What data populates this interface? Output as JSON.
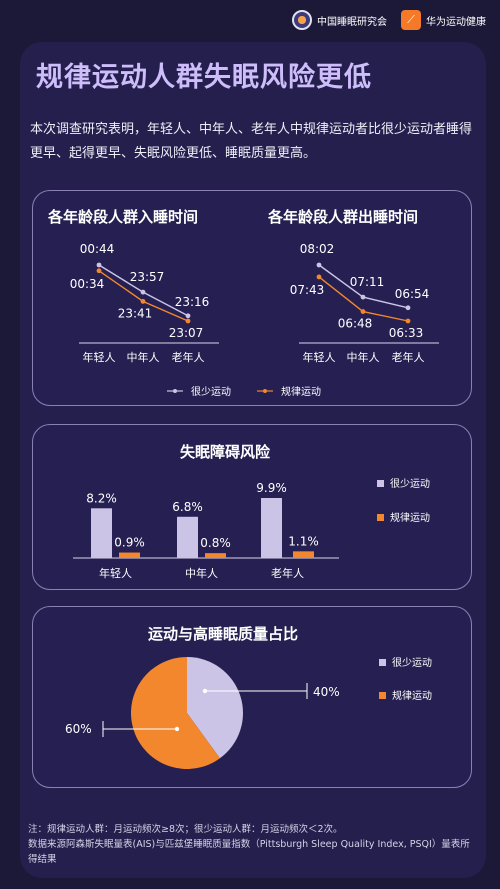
{
  "header": {
    "org1": "中国睡眠研究会",
    "org2": "华为运动健康"
  },
  "title": "规律运动人群失眠风险更低",
  "intro": "本次调查研究表明，年轻人、中年人、老年人中规律运动者比很少运动者睡得更早、起得更早、失眠风险更低、睡眠质量更高。",
  "colors": {
    "series_a": "#cbc4e6",
    "series_b": "#f2872e",
    "title": "#cdbdfb"
  },
  "chart_data": [
    {
      "type": "line",
      "title": "各年龄段人群入睡时间",
      "categories": [
        "年轻人",
        "中年人",
        "老年人"
      ],
      "series": [
        {
          "name": "很少运动",
          "values": [
            "00:44",
            "23:57",
            "23:16"
          ],
          "minutes": [
            1484,
            1437,
            1396
          ]
        },
        {
          "name": "规律运动",
          "values": [
            "00:34",
            "23:41",
            "23:07"
          ],
          "minutes": [
            1474,
            1421,
            1387
          ]
        }
      ]
    },
    {
      "type": "line",
      "title": "各年龄段人群出睡时间",
      "categories": [
        "年轻人",
        "中年人",
        "老年人"
      ],
      "series": [
        {
          "name": "很少运动",
          "values": [
            "08:02",
            "07:11",
            "06:54"
          ],
          "minutes": [
            482,
            431,
            414
          ]
        },
        {
          "name": "规律运动",
          "values": [
            "07:43",
            "06:48",
            "06:33"
          ],
          "minutes": [
            463,
            408,
            393
          ]
        }
      ]
    },
    {
      "type": "bar",
      "title": "失眠障碍风险",
      "categories": [
        "年轻人",
        "中年人",
        "老年人"
      ],
      "series": [
        {
          "name": "很少运动",
          "values": [
            8.2,
            6.8,
            9.9
          ],
          "labels": [
            "8.2%",
            "6.8%",
            "9.9%"
          ]
        },
        {
          "name": "规律运动",
          "values": [
            0.9,
            0.8,
            1.1
          ],
          "labels": [
            "0.9%",
            "0.8%",
            "1.1%"
          ]
        }
      ]
    },
    {
      "type": "pie",
      "title": "运动与高睡眠质量占比",
      "slices": [
        {
          "name": "很少运动",
          "value": 40,
          "label": "40%"
        },
        {
          "name": "规律运动",
          "value": 60,
          "label": "60%"
        }
      ]
    }
  ],
  "legend": {
    "a": "很少运动",
    "b": "规律运动"
  },
  "footnote": {
    "line1": "注：规律运动人群：月运动频次≥8次；很少运动人群：月运动频次＜2次。",
    "line2": "数据来源阿森斯失眠量表(AIS)与匹兹堡睡眠质量指数（Pittsburgh Sleep Quality Index, PSQI）量表所得结果"
  }
}
